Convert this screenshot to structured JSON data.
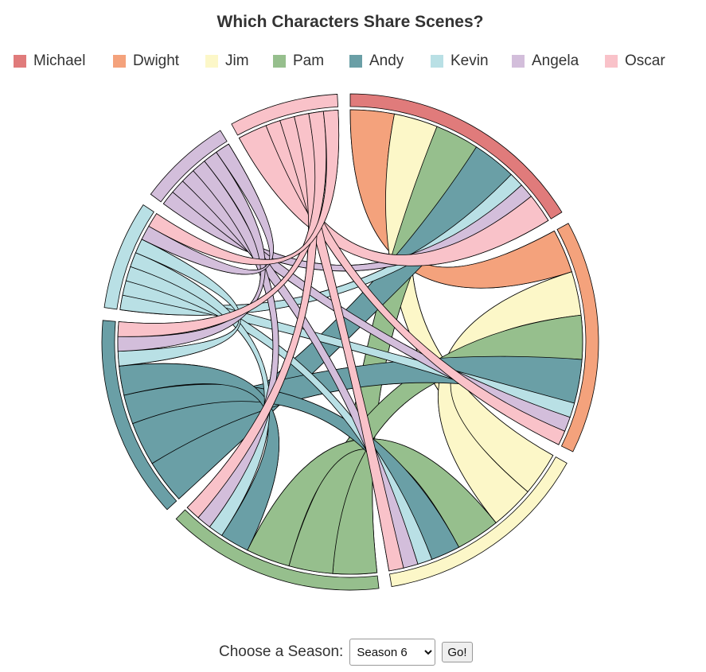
{
  "chart_data": {
    "type": "chord",
    "title": "Which Characters Share Scenes?",
    "characters": [
      "Michael",
      "Dwight",
      "Jim",
      "Pam",
      "Andy",
      "Kevin",
      "Angela",
      "Oscar"
    ],
    "colors": {
      "Michael": "#e07b7b",
      "Dwight": "#f4a27c",
      "Jim": "#fcf7c8",
      "Pam": "#96bf8d",
      "Andy": "#6a9fa6",
      "Kevin": "#b9e0e5",
      "Angela": "#d3bedb",
      "Oscar": "#f9c2c9"
    },
    "matrix": [
      [
        0,
        3,
        3,
        3,
        3,
        1,
        1,
        2
      ],
      [
        3,
        0,
        3,
        3,
        3,
        1,
        1,
        1
      ],
      [
        3,
        3,
        0,
        3,
        2,
        1,
        1,
        1
      ],
      [
        3,
        3,
        3,
        0,
        2,
        1,
        1,
        1
      ],
      [
        3,
        3,
        2,
        2,
        0,
        1,
        1,
        1
      ],
      [
        1,
        1,
        1,
        1,
        1,
        0,
        1,
        1
      ],
      [
        1,
        1,
        1,
        1,
        1,
        1,
        0,
        0
      ],
      [
        2,
        1,
        1,
        1,
        1,
        1,
        0,
        0
      ]
    ]
  },
  "controls": {
    "season_label": "Choose a Season:",
    "season_options": [
      "Season 6"
    ],
    "season_selected": "Season 6",
    "go_label": "Go!"
  }
}
